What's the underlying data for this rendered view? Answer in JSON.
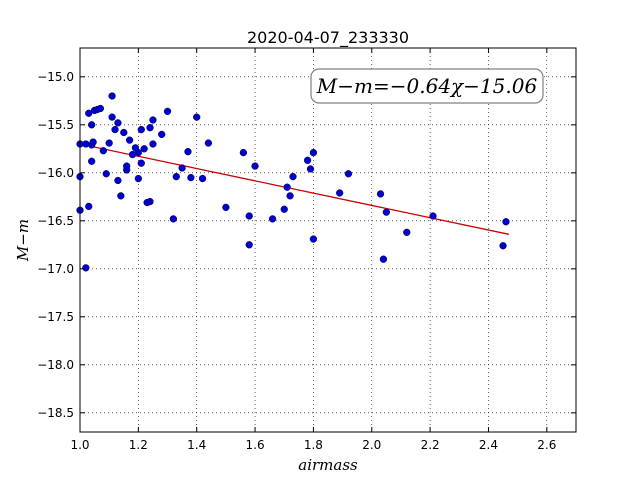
{
  "chart_data": {
    "type": "scatter",
    "title": "2020-04-07_233330",
    "xlabel": "airmass",
    "ylabel": "M−m",
    "xlim": [
      1.0,
      2.7
    ],
    "ylim": [
      -18.7,
      -14.7
    ],
    "x_ticks": [
      1.0,
      1.2,
      1.4,
      1.6,
      1.8,
      2.0,
      2.2,
      2.4,
      2.6
    ],
    "x_tick_labels": [
      "1.0",
      "1.2",
      "1.4",
      "1.6",
      "1.8",
      "2.0",
      "2.2",
      "2.4",
      "2.6"
    ],
    "y_ticks": [
      -15.0,
      -15.5,
      -16.0,
      -16.5,
      -17.0,
      -17.5,
      -18.0,
      -18.5
    ],
    "y_tick_labels": [
      "−15.0",
      "−15.5",
      "−16.0",
      "−16.5",
      "−17.0",
      "−17.5",
      "−18.0",
      "−18.5"
    ],
    "grid": true,
    "annotation": "M−m=−0.64χ−15.06",
    "fit": {
      "slope": -0.64,
      "intercept": -15.06,
      "x_range": [
        1.03,
        2.47
      ],
      "color": "#cc0000"
    },
    "point_color": "#0000cc",
    "points": [
      [
        1.0,
        -15.7
      ],
      [
        1.0,
        -16.04
      ],
      [
        1.0,
        -16.39
      ],
      [
        1.02,
        -15.7
      ],
      [
        1.02,
        -16.99
      ],
      [
        1.03,
        -15.38
      ],
      [
        1.03,
        -16.35
      ],
      [
        1.04,
        -15.5
      ],
      [
        1.04,
        -15.88
      ],
      [
        1.04,
        -15.71
      ],
      [
        1.045,
        -15.68
      ],
      [
        1.05,
        -15.35
      ],
      [
        1.06,
        -15.34
      ],
      [
        1.07,
        -15.33
      ],
      [
        1.08,
        -15.77
      ],
      [
        1.09,
        -16.01
      ],
      [
        1.1,
        -15.69
      ],
      [
        1.11,
        -15.2
      ],
      [
        1.11,
        -15.42
      ],
      [
        1.12,
        -15.55
      ],
      [
        1.13,
        -15.48
      ],
      [
        1.13,
        -16.08
      ],
      [
        1.14,
        -16.24
      ],
      [
        1.15,
        -15.58
      ],
      [
        1.16,
        -15.97
      ],
      [
        1.16,
        -15.93
      ],
      [
        1.17,
        -15.66
      ],
      [
        1.18,
        -15.81
      ],
      [
        1.19,
        -15.74
      ],
      [
        1.2,
        -15.79
      ],
      [
        1.2,
        -16.06
      ],
      [
        1.21,
        -15.9
      ],
      [
        1.21,
        -15.55
      ],
      [
        1.22,
        -15.75
      ],
      [
        1.23,
        -16.31
      ],
      [
        1.24,
        -16.3
      ],
      [
        1.24,
        -15.53
      ],
      [
        1.25,
        -15.7
      ],
      [
        1.25,
        -15.45
      ],
      [
        1.28,
        -15.6
      ],
      [
        1.3,
        -15.36
      ],
      [
        1.32,
        -16.48
      ],
      [
        1.33,
        -16.04
      ],
      [
        1.35,
        -15.95
      ],
      [
        1.37,
        -15.78
      ],
      [
        1.38,
        -16.05
      ],
      [
        1.4,
        -15.42
      ],
      [
        1.42,
        -16.06
      ],
      [
        1.44,
        -15.69
      ],
      [
        1.5,
        -16.36
      ],
      [
        1.56,
        -15.79
      ],
      [
        1.58,
        -16.45
      ],
      [
        1.58,
        -16.75
      ],
      [
        1.6,
        -15.93
      ],
      [
        1.66,
        -16.48
      ],
      [
        1.7,
        -16.38
      ],
      [
        1.71,
        -16.15
      ],
      [
        1.72,
        -16.24
      ],
      [
        1.73,
        -16.04
      ],
      [
        1.78,
        -15.87
      ],
      [
        1.79,
        -15.96
      ],
      [
        1.8,
        -15.79
      ],
      [
        1.8,
        -16.69
      ],
      [
        1.89,
        -16.21
      ],
      [
        1.92,
        -16.01
      ],
      [
        2.03,
        -16.22
      ],
      [
        2.04,
        -16.9
      ],
      [
        2.05,
        -16.41
      ],
      [
        2.12,
        -16.62
      ],
      [
        2.21,
        -16.45
      ],
      [
        2.45,
        -16.76
      ],
      [
        2.46,
        -16.51
      ]
    ]
  }
}
